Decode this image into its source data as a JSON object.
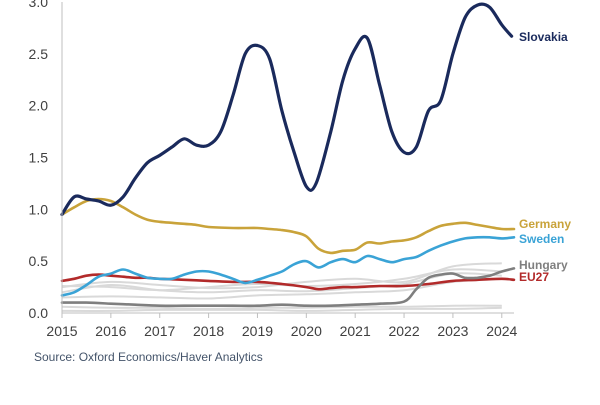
{
  "chart_data": {
    "type": "line",
    "title": "",
    "xlabel": "",
    "ylabel": "",
    "x_ticks": [
      "2015",
      "2016",
      "2017",
      "2018",
      "2019",
      "2020",
      "2021",
      "2022",
      "2023",
      "2024"
    ],
    "y_ticks": [
      "0.0",
      "0.5",
      "1.0",
      "1.5",
      "2.0",
      "2.5",
      "3.0"
    ],
    "xlim": [
      2015,
      2024.25
    ],
    "ylim": [
      0,
      3
    ],
    "grid": false,
    "source": "Source: Oxford Economics/Haver Analytics",
    "series": [
      {
        "name": "Slovakia",
        "color": "#1a2a5c",
        "points": [
          [
            2015.0,
            0.95
          ],
          [
            2015.25,
            1.12
          ],
          [
            2015.5,
            1.1
          ],
          [
            2015.75,
            1.08
          ],
          [
            2016.0,
            1.04
          ],
          [
            2016.25,
            1.12
          ],
          [
            2016.5,
            1.3
          ],
          [
            2016.75,
            1.45
          ],
          [
            2017.0,
            1.52
          ],
          [
            2017.25,
            1.6
          ],
          [
            2017.5,
            1.68
          ],
          [
            2017.75,
            1.62
          ],
          [
            2018.0,
            1.62
          ],
          [
            2018.25,
            1.75
          ],
          [
            2018.5,
            2.1
          ],
          [
            2018.75,
            2.5
          ],
          [
            2019.0,
            2.58
          ],
          [
            2019.25,
            2.45
          ],
          [
            2019.5,
            1.95
          ],
          [
            2019.75,
            1.55
          ],
          [
            2020.0,
            1.22
          ],
          [
            2020.2,
            1.25
          ],
          [
            2020.5,
            1.75
          ],
          [
            2020.75,
            2.25
          ],
          [
            2021.0,
            2.55
          ],
          [
            2021.25,
            2.65
          ],
          [
            2021.5,
            2.2
          ],
          [
            2021.75,
            1.75
          ],
          [
            2022.0,
            1.55
          ],
          [
            2022.25,
            1.6
          ],
          [
            2022.5,
            1.95
          ],
          [
            2022.75,
            2.05
          ],
          [
            2023.0,
            2.5
          ],
          [
            2023.25,
            2.85
          ],
          [
            2023.5,
            2.97
          ],
          [
            2023.75,
            2.95
          ],
          [
            2024.0,
            2.78
          ],
          [
            2024.2,
            2.67
          ]
        ]
      },
      {
        "name": "Germany",
        "color": "#c9a33a",
        "points": [
          [
            2015.0,
            0.95
          ],
          [
            2015.25,
            1.02
          ],
          [
            2015.5,
            1.08
          ],
          [
            2015.75,
            1.1
          ],
          [
            2016.0,
            1.08
          ],
          [
            2016.25,
            1.02
          ],
          [
            2016.5,
            0.95
          ],
          [
            2016.75,
            0.9
          ],
          [
            2017.0,
            0.88
          ],
          [
            2017.25,
            0.87
          ],
          [
            2017.5,
            0.86
          ],
          [
            2017.75,
            0.85
          ],
          [
            2018.0,
            0.83
          ],
          [
            2018.5,
            0.82
          ],
          [
            2019.0,
            0.82
          ],
          [
            2019.25,
            0.81
          ],
          [
            2019.5,
            0.8
          ],
          [
            2019.75,
            0.78
          ],
          [
            2020.0,
            0.74
          ],
          [
            2020.25,
            0.62
          ],
          [
            2020.5,
            0.58
          ],
          [
            2020.75,
            0.6
          ],
          [
            2021.0,
            0.61
          ],
          [
            2021.25,
            0.68
          ],
          [
            2021.5,
            0.67
          ],
          [
            2021.75,
            0.69
          ],
          [
            2022.0,
            0.7
          ],
          [
            2022.25,
            0.73
          ],
          [
            2022.5,
            0.79
          ],
          [
            2022.75,
            0.84
          ],
          [
            2023.0,
            0.86
          ],
          [
            2023.25,
            0.87
          ],
          [
            2023.5,
            0.85
          ],
          [
            2023.75,
            0.83
          ],
          [
            2024.0,
            0.81
          ],
          [
            2024.25,
            0.81
          ]
        ]
      },
      {
        "name": "Sweden",
        "color": "#3aa3d6",
        "points": [
          [
            2015.0,
            0.17
          ],
          [
            2015.25,
            0.2
          ],
          [
            2015.5,
            0.27
          ],
          [
            2015.75,
            0.35
          ],
          [
            2016.0,
            0.38
          ],
          [
            2016.25,
            0.42
          ],
          [
            2016.5,
            0.38
          ],
          [
            2016.75,
            0.34
          ],
          [
            2017.0,
            0.33
          ],
          [
            2017.25,
            0.33
          ],
          [
            2017.5,
            0.37
          ],
          [
            2017.75,
            0.4
          ],
          [
            2018.0,
            0.4
          ],
          [
            2018.25,
            0.37
          ],
          [
            2018.5,
            0.33
          ],
          [
            2018.75,
            0.29
          ],
          [
            2019.0,
            0.32
          ],
          [
            2019.25,
            0.36
          ],
          [
            2019.5,
            0.4
          ],
          [
            2019.75,
            0.47
          ],
          [
            2020.0,
            0.5
          ],
          [
            2020.25,
            0.44
          ],
          [
            2020.5,
            0.49
          ],
          [
            2020.75,
            0.52
          ],
          [
            2021.0,
            0.49
          ],
          [
            2021.25,
            0.55
          ],
          [
            2021.5,
            0.52
          ],
          [
            2021.75,
            0.49
          ],
          [
            2022.0,
            0.52
          ],
          [
            2022.25,
            0.54
          ],
          [
            2022.5,
            0.6
          ],
          [
            2022.75,
            0.65
          ],
          [
            2023.0,
            0.69
          ],
          [
            2023.25,
            0.72
          ],
          [
            2023.5,
            0.73
          ],
          [
            2023.75,
            0.73
          ],
          [
            2024.0,
            0.72
          ],
          [
            2024.25,
            0.73
          ]
        ]
      },
      {
        "name": "Hungary",
        "color": "#7f7f7f",
        "points": [
          [
            2015.0,
            0.1
          ],
          [
            2015.5,
            0.1
          ],
          [
            2016.0,
            0.09
          ],
          [
            2016.5,
            0.08
          ],
          [
            2017.0,
            0.07
          ],
          [
            2017.5,
            0.07
          ],
          [
            2018.0,
            0.07
          ],
          [
            2018.5,
            0.07
          ],
          [
            2019.0,
            0.07
          ],
          [
            2019.5,
            0.08
          ],
          [
            2020.0,
            0.07
          ],
          [
            2020.5,
            0.07
          ],
          [
            2021.0,
            0.08
          ],
          [
            2021.5,
            0.09
          ],
          [
            2022.0,
            0.11
          ],
          [
            2022.25,
            0.23
          ],
          [
            2022.5,
            0.34
          ],
          [
            2022.75,
            0.37
          ],
          [
            2023.0,
            0.38
          ],
          [
            2023.25,
            0.34
          ],
          [
            2023.5,
            0.34
          ],
          [
            2023.75,
            0.36
          ],
          [
            2024.0,
            0.4
          ],
          [
            2024.25,
            0.43
          ]
        ]
      },
      {
        "name": "EU27",
        "color": "#b22a2a",
        "points": [
          [
            2015.0,
            0.31
          ],
          [
            2015.25,
            0.33
          ],
          [
            2015.5,
            0.36
          ],
          [
            2015.75,
            0.37
          ],
          [
            2016.0,
            0.36
          ],
          [
            2016.25,
            0.35
          ],
          [
            2016.5,
            0.34
          ],
          [
            2016.75,
            0.34
          ],
          [
            2017.0,
            0.33
          ],
          [
            2017.5,
            0.32
          ],
          [
            2018.0,
            0.31
          ],
          [
            2018.5,
            0.3
          ],
          [
            2019.0,
            0.3
          ],
          [
            2019.5,
            0.28
          ],
          [
            2020.0,
            0.25
          ],
          [
            2020.25,
            0.23
          ],
          [
            2020.5,
            0.24
          ],
          [
            2020.75,
            0.25
          ],
          [
            2021.0,
            0.25
          ],
          [
            2021.5,
            0.26
          ],
          [
            2022.0,
            0.26
          ],
          [
            2022.5,
            0.28
          ],
          [
            2023.0,
            0.31
          ],
          [
            2023.5,
            0.32
          ],
          [
            2024.0,
            0.33
          ],
          [
            2024.25,
            0.32
          ]
        ]
      }
    ],
    "background_series": [
      {
        "name": "other-1",
        "color": "#d9d9d9",
        "points": [
          [
            2015,
            0.25
          ],
          [
            2016,
            0.3
          ],
          [
            2017,
            0.27
          ],
          [
            2018,
            0.24
          ],
          [
            2019,
            0.25
          ],
          [
            2020,
            0.3
          ],
          [
            2021,
            0.33
          ],
          [
            2022,
            0.3
          ],
          [
            2023,
            0.45
          ],
          [
            2024,
            0.48
          ]
        ]
      },
      {
        "name": "other-2",
        "color": "#d9d9d9",
        "points": [
          [
            2015,
            0.2
          ],
          [
            2016,
            0.27
          ],
          [
            2017,
            0.22
          ],
          [
            2018,
            0.2
          ],
          [
            2019,
            0.22
          ],
          [
            2020,
            0.21
          ],
          [
            2021,
            0.24
          ],
          [
            2022,
            0.28
          ],
          [
            2023,
            0.38
          ],
          [
            2024,
            0.36
          ]
        ]
      },
      {
        "name": "other-3",
        "color": "#d9d9d9",
        "points": [
          [
            2015,
            0.15
          ],
          [
            2016,
            0.16
          ],
          [
            2017,
            0.15
          ],
          [
            2018,
            0.14
          ],
          [
            2019,
            0.17
          ],
          [
            2020,
            0.18
          ],
          [
            2021,
            0.2
          ],
          [
            2022,
            0.22
          ],
          [
            2023,
            0.3
          ],
          [
            2024,
            0.33
          ]
        ]
      },
      {
        "name": "other-4",
        "color": "#d9d9d9",
        "points": [
          [
            2015,
            0.06
          ],
          [
            2016,
            0.05
          ],
          [
            2017,
            0.05
          ],
          [
            2018,
            0.04
          ],
          [
            2019,
            0.05
          ],
          [
            2020,
            0.05
          ],
          [
            2021,
            0.06
          ],
          [
            2022,
            0.06
          ],
          [
            2023,
            0.07
          ],
          [
            2024,
            0.07
          ]
        ]
      },
      {
        "name": "other-5",
        "color": "#d9d9d9",
        "points": [
          [
            2015,
            0.02
          ],
          [
            2016,
            0.02
          ],
          [
            2017,
            0.03
          ],
          [
            2018,
            0.03
          ],
          [
            2019,
            0.03
          ],
          [
            2020,
            0.02
          ],
          [
            2021,
            0.03
          ],
          [
            2022,
            0.04
          ],
          [
            2023,
            0.04
          ],
          [
            2024,
            0.05
          ]
        ]
      },
      {
        "name": "other-6",
        "color": "#d9d9d9",
        "points": [
          [
            2015,
            0.26
          ],
          [
            2016,
            0.25
          ],
          [
            2017,
            0.22
          ],
          [
            2018,
            0.25
          ],
          [
            2019,
            0.28
          ],
          [
            2020,
            0.26
          ],
          [
            2021,
            0.28
          ],
          [
            2022,
            0.33
          ],
          [
            2023,
            0.42
          ],
          [
            2024,
            0.4
          ]
        ]
      }
    ]
  }
}
